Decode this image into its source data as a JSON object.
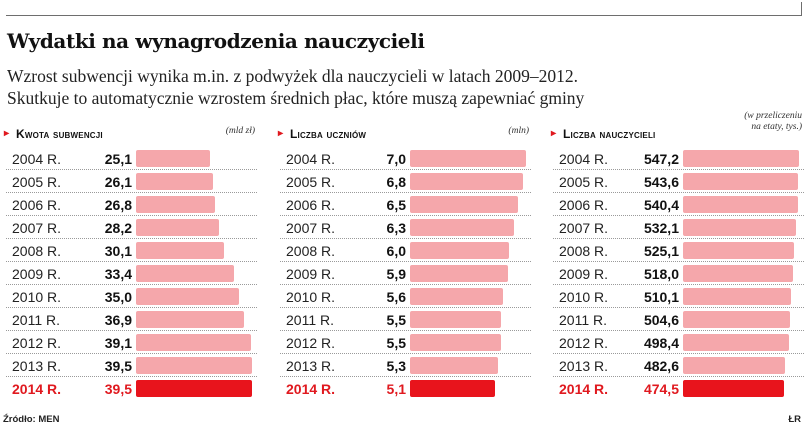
{
  "header": {
    "title": "Wydatki na wynagrodzenia nauczycieli",
    "subtitle_line1": "Wzrost subwencji wynika m.in. z podwyżek dla nauczycieli w latach 2009–2012.",
    "subtitle_line2": "Skutkuje to automatycznie wzrostem średnich płac, które muszą zapewniać gminy"
  },
  "footer": {
    "source": "Źródło: MEN",
    "credit": "ŁR"
  },
  "colors": {
    "bar": "#f5a7ab",
    "highlight_bar": "#e8141c",
    "highlight_text": "#e0191f"
  },
  "chart_data": [
    {
      "type": "bar",
      "title": "Kwota subwencji",
      "unit": "(mld zł)",
      "categories": [
        "2004 R.",
        "2005 R.",
        "2006 R.",
        "2007 R.",
        "2008 R.",
        "2009 R.",
        "2010 R.",
        "2011 R.",
        "2012 R.",
        "2013 R.",
        "2014 R."
      ],
      "value_labels": [
        "25,1",
        "26,1",
        "26,8",
        "28,2",
        "30,1",
        "33,4",
        "35,0",
        "36,9",
        "39,1",
        "39,5",
        "39,5"
      ],
      "values": [
        25.1,
        26.1,
        26.8,
        28.2,
        30.1,
        33.4,
        35.0,
        36.9,
        39.1,
        39.5,
        39.5
      ],
      "highlight": "2014 R."
    },
    {
      "type": "bar",
      "title": "Liczba uczniów",
      "unit": "(mln)",
      "categories": [
        "2004 R.",
        "2005 R.",
        "2006 R.",
        "2007 R.",
        "2008 R.",
        "2009 R.",
        "2010 R.",
        "2011 R.",
        "2012 R.",
        "2013 R.",
        "2014 R."
      ],
      "value_labels": [
        "7,0",
        "6,8",
        "6,5",
        "6,3",
        "6,0",
        "5,9",
        "5,6",
        "5,5",
        "5,5",
        "5,3",
        "5,1"
      ],
      "values": [
        7.0,
        6.8,
        6.5,
        6.3,
        6.0,
        5.9,
        5.6,
        5.5,
        5.5,
        5.3,
        5.1
      ],
      "highlight": "2014 R."
    },
    {
      "type": "bar",
      "title": "Liczba nauczycieli",
      "unit_line1": "(w przeliczeniu",
      "unit_line2": "na etaty, tys.)",
      "categories": [
        "2004 R.",
        "2005 R.",
        "2006 R.",
        "2007 R.",
        "2008 R.",
        "2009 R.",
        "2010 R.",
        "2011 R.",
        "2012 R.",
        "2013 R.",
        "2014 R."
      ],
      "value_labels": [
        "547,2",
        "543,6",
        "540,4",
        "532,1",
        "525,1",
        "518,0",
        "510,1",
        "504,6",
        "498,4",
        "482,6",
        "474,5"
      ],
      "values": [
        547.2,
        543.6,
        540.4,
        532.1,
        525.1,
        518.0,
        510.1,
        504.6,
        498.4,
        482.6,
        474.5
      ],
      "highlight": "2014 R."
    }
  ]
}
